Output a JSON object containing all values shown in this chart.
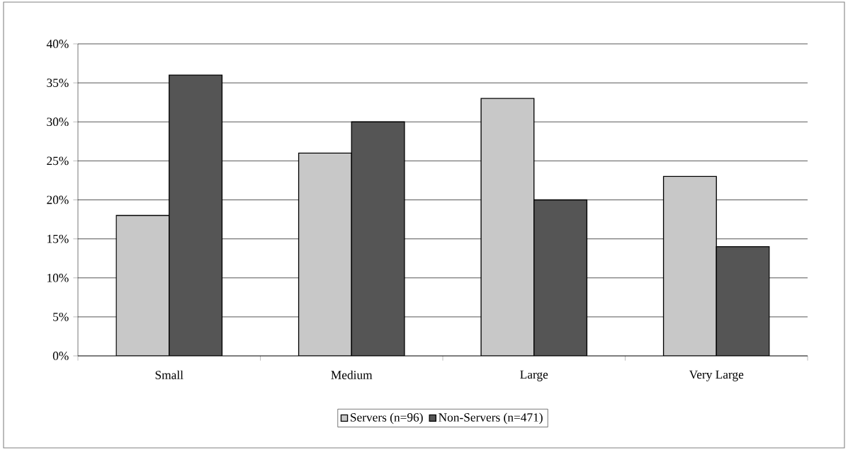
{
  "chart_data": {
    "type": "bar",
    "categories": [
      "Small",
      "Medium",
      "Large",
      "Very Large"
    ],
    "series": [
      {
        "name": "Servers (n=96)",
        "color": "#c8c8c8",
        "values": [
          18,
          26,
          33,
          23
        ]
      },
      {
        "name": "Non-Servers (n=471)",
        "color": "#555555",
        "values": [
          36,
          30,
          20,
          14
        ]
      }
    ],
    "ylim": [
      0,
      40
    ],
    "yticks": [
      {
        "value": 0,
        "label": "0%"
      },
      {
        "value": 5,
        "label": "5%"
      },
      {
        "value": 10,
        "label": "10%"
      },
      {
        "value": 15,
        "label": "15%"
      },
      {
        "value": 20,
        "label": "20%"
      },
      {
        "value": 25,
        "label": "25%"
      },
      {
        "value": 30,
        "label": "30%"
      },
      {
        "value": 35,
        "label": "35%"
      },
      {
        "value": 40,
        "label": "40%"
      }
    ],
    "grid": "y",
    "legend": "bottom"
  }
}
